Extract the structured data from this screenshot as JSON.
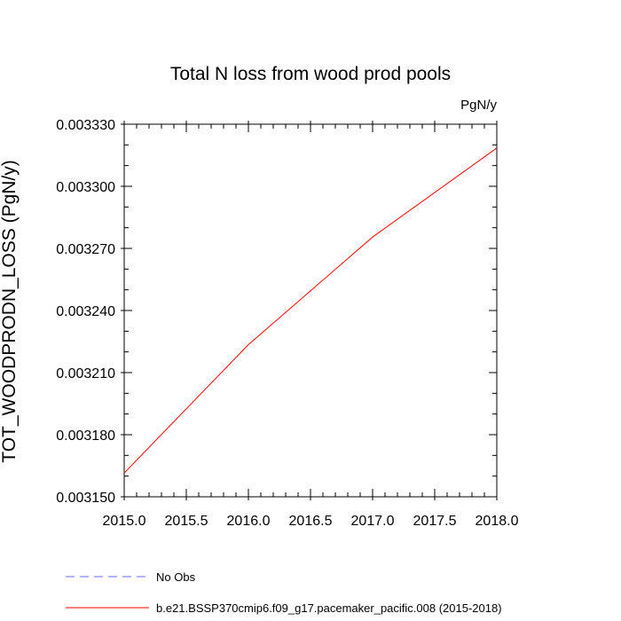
{
  "chart_data": {
    "type": "line",
    "title": "Total N loss from wood prod pools",
    "units": "PgN/y",
    "xlabel": "",
    "ylabel": "TOT_WOODPRODN_LOSS  (PgN/y)",
    "xlim": [
      2015.0,
      2018.0
    ],
    "ylim": [
      0.00315,
      0.00333
    ],
    "x_ticks": [
      "2015.0",
      "2015.5",
      "2016.0",
      "2016.5",
      "2017.0",
      "2017.5",
      "2018.0"
    ],
    "y_ticks": [
      "0.003150",
      "0.003180",
      "0.003210",
      "0.003240",
      "0.003270",
      "0.003300",
      "0.003330"
    ],
    "grid": false,
    "legend_position": "bottom",
    "series": [
      {
        "name": "No Obs",
        "color": "#6b6bff",
        "dash": "dashed",
        "x": [],
        "y": []
      },
      {
        "name": "b.e21.BSSP370cmip6.f09_g17.pacemaker_pacific.008 (2015-2018)",
        "color": "#ff0000",
        "dash": "solid",
        "x": [
          2015.0,
          2016.0,
          2017.0,
          2018.0
        ],
        "y": [
          0.0031615,
          0.0032235,
          0.0032755,
          0.0033185
        ]
      }
    ]
  }
}
